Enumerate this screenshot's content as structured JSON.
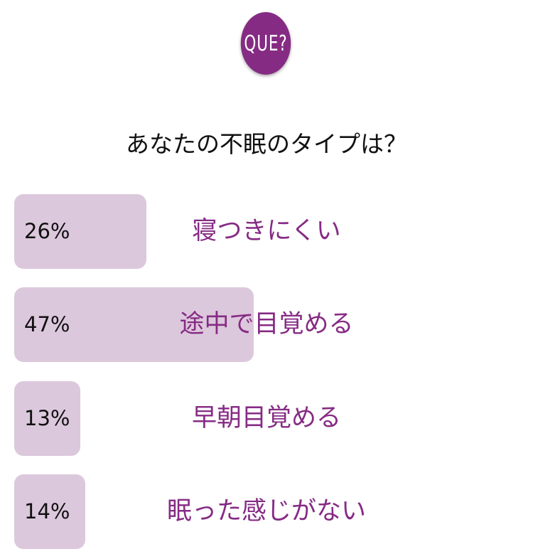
{
  "logo_text": "QUE?",
  "question": "あなたの不眠のタイプは？",
  "accent": "#862b84",
  "bar_color": "#dcc8dc",
  "options": [
    {
      "percent": 26,
      "percent_label": "26%",
      "label": "寝つきにくい"
    },
    {
      "percent": 47,
      "percent_label": "47%",
      "label": "途中で目覚める"
    },
    {
      "percent": 13,
      "percent_label": "13%",
      "label": "早朝目覚める"
    },
    {
      "percent": 14,
      "percent_label": "14%",
      "label": "眠った感じがない"
    }
  ]
}
